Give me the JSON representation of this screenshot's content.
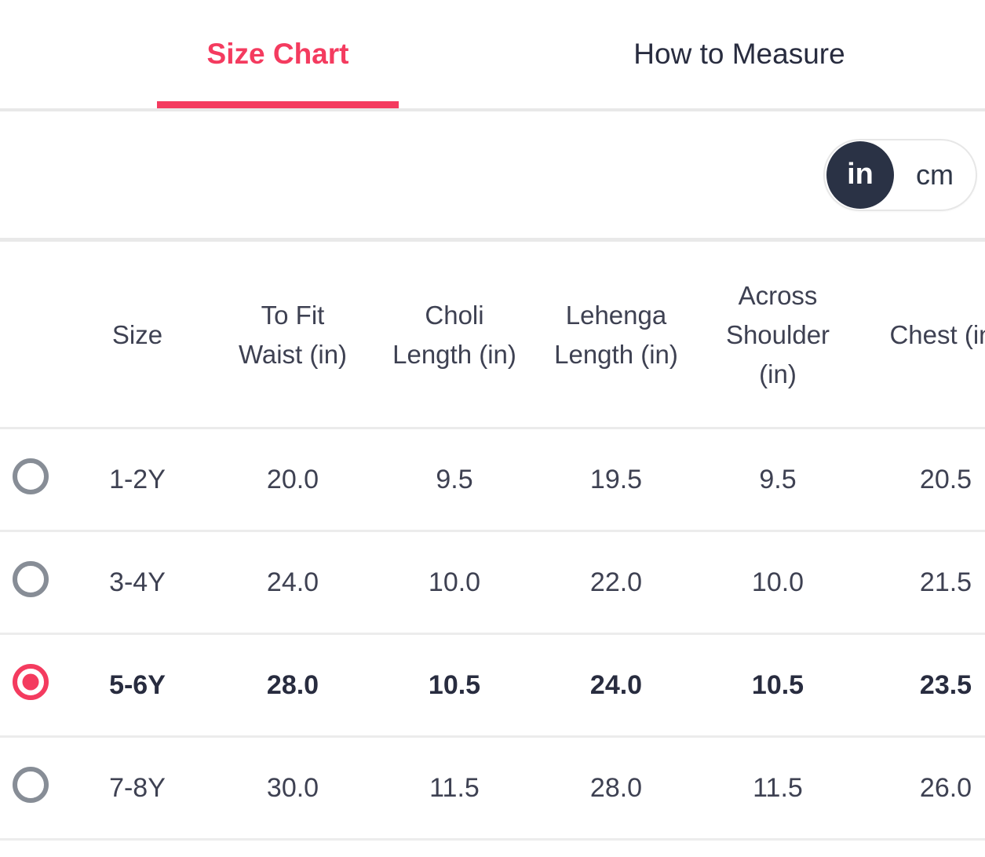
{
  "tabs": {
    "size_chart_label": "Size Chart",
    "how_to_measure_label": "How to Measure",
    "active": "Size Chart"
  },
  "unit_toggle": {
    "selected": "in",
    "in_label": "in",
    "cm_label": "cm"
  },
  "table": {
    "columns": [
      "Size",
      "To Fit\nWaist (in)",
      "Choli\nLength (in)",
      "Lehenga\nLength (in)",
      "Across\nShoulder\n(in)",
      "Chest (in)"
    ],
    "rows": [
      {
        "size": "1-2Y",
        "values": [
          "20.0",
          "9.5",
          "19.5",
          "9.5",
          "20.5"
        ],
        "selected": false
      },
      {
        "size": "3-4Y",
        "values": [
          "24.0",
          "10.0",
          "22.0",
          "10.0",
          "21.5"
        ],
        "selected": false
      },
      {
        "size": "5-6Y",
        "values": [
          "28.0",
          "10.5",
          "24.0",
          "10.5",
          "23.5"
        ],
        "selected": true
      },
      {
        "size": "7-8Y",
        "values": [
          "30.0",
          "11.5",
          "28.0",
          "11.5",
          "26.0"
        ],
        "selected": false
      }
    ]
  },
  "colors": {
    "accent_pink": "#f43b5f",
    "dark_navy": "#282c3f",
    "body_text": "#3e4152",
    "divider": "#ebebeb",
    "radio_gray": "#878d96",
    "toggle_circle": "#2a3245"
  }
}
